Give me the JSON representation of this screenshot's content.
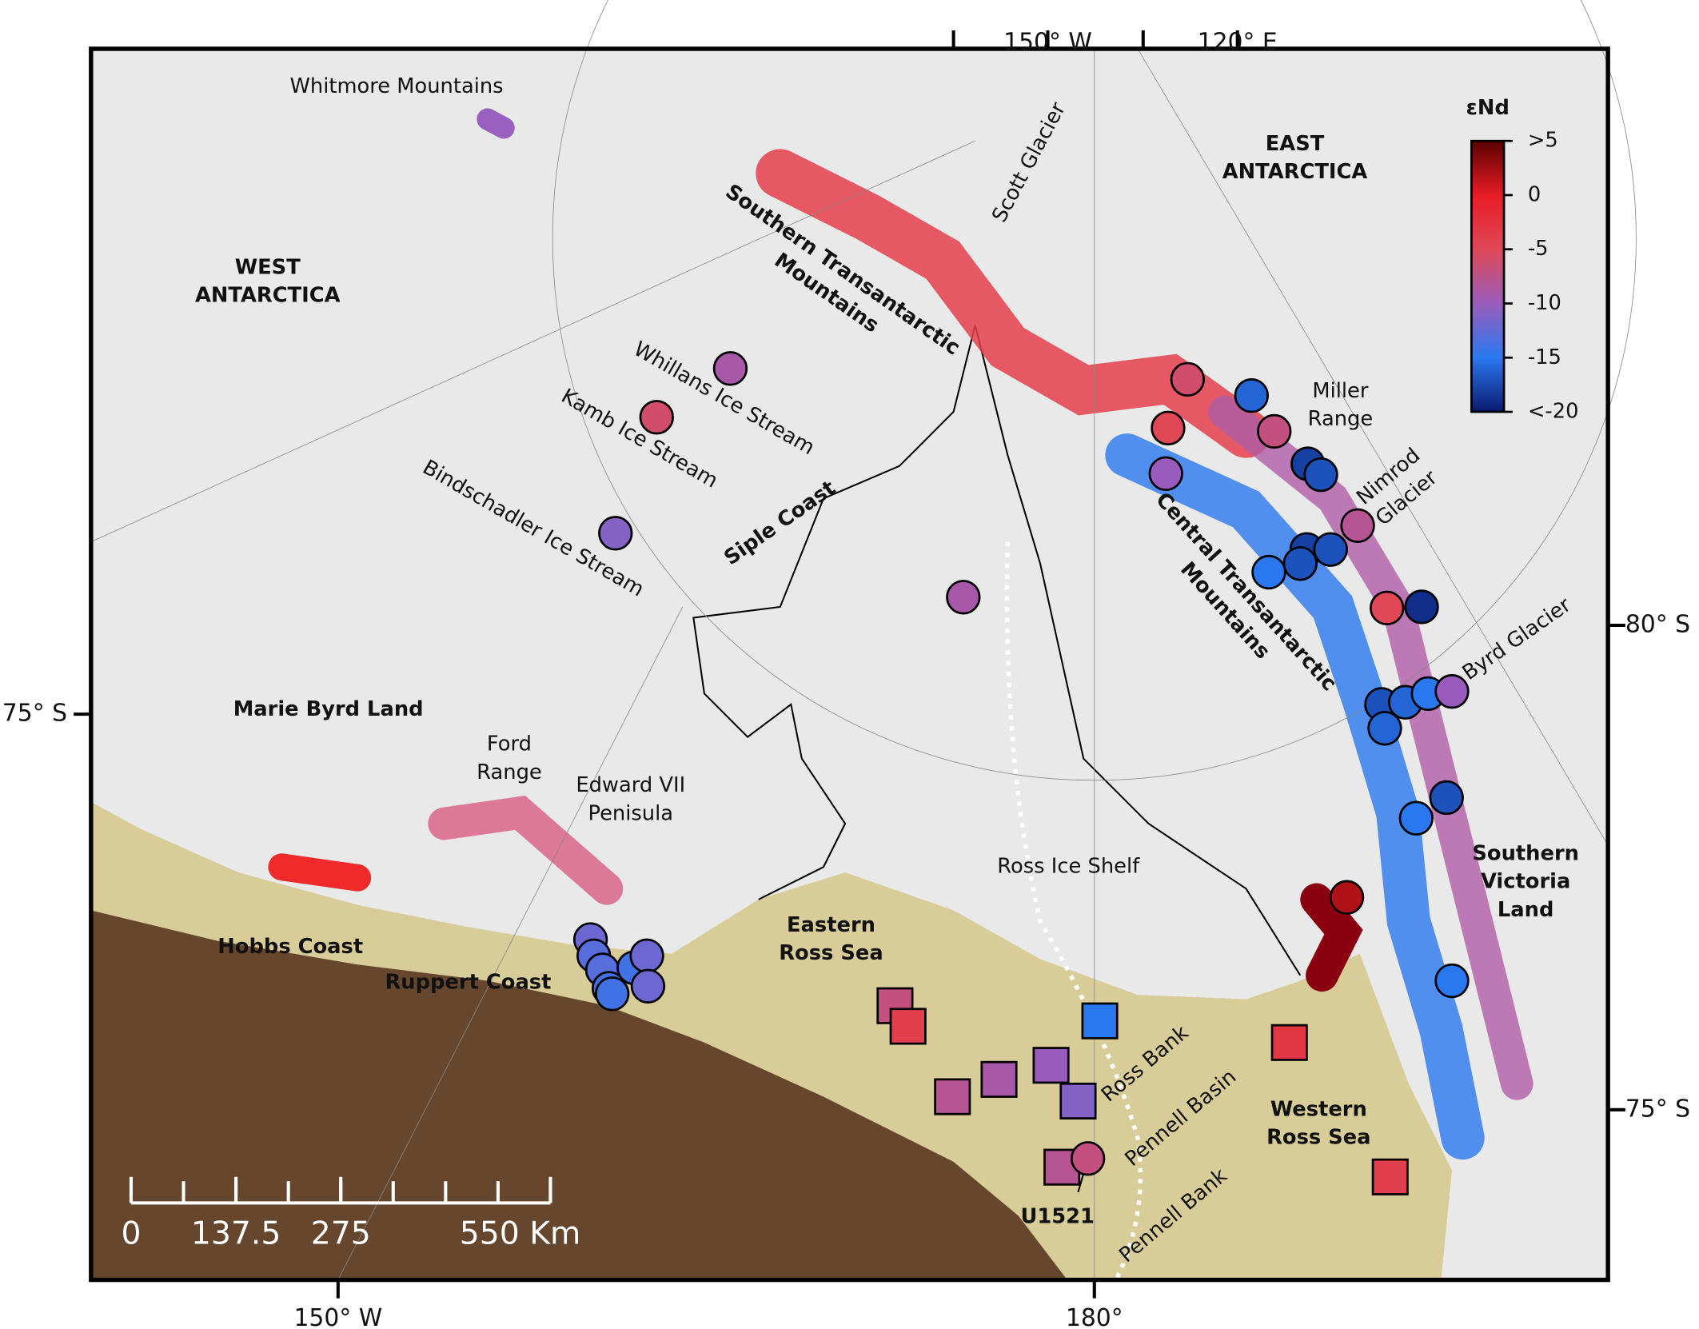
{
  "map": {
    "graticule_labels": [
      "150° W",
      "120° E",
      "80° S",
      "75° S",
      "75° S",
      "150° W",
      "180°"
    ],
    "labels": [
      [
        "Whitmore Mountains"
      ],
      [
        "WEST",
        "ANTARCTICA"
      ],
      [
        "EAST",
        "ANTARCTICA"
      ],
      [
        "Scott Glacier"
      ],
      [
        "Southern Transantarctic",
        "Mountains"
      ],
      [
        "Whillans Ice Stream"
      ],
      [
        "Kamb Ice Stream"
      ],
      [
        "Bindschadler Ice Stream"
      ],
      [
        "Siple Coast"
      ],
      [
        "Miller",
        "Range"
      ],
      [
        "Nimrod",
        "Glacier"
      ],
      [
        "Central Transantarctic",
        "Mountains"
      ],
      [
        "Byrd Glacier"
      ],
      [
        "Marie Byrd Land"
      ],
      [
        "Ford",
        "Range"
      ],
      [
        "Edward VII",
        "Penisula"
      ],
      [
        "Ross Ice Shelf"
      ],
      [
        "Southern",
        "Victoria",
        "Land"
      ],
      [
        "Hobbs Coast"
      ],
      [
        "Ruppert Coast"
      ],
      [
        "Eastern",
        "Ross Sea"
      ],
      [
        "Western",
        "Ross Sea"
      ],
      [
        "Ross Bank"
      ],
      [
        "Pennell Basin"
      ],
      [
        "Pennell Bank"
      ],
      [
        "U1521"
      ]
    ],
    "colorbar": {
      "title": "εNd",
      "lim": [
        -20,
        5
      ],
      "ticks": [
        {
          "value": 5,
          "label": ">5"
        },
        0,
        -5,
        -10,
        -15,
        {
          "value": -20,
          "label": "<-20"
        }
      ]
    },
    "scale_bar": {
      "lim": [
        0,
        550
      ],
      "ticks": [
        0,
        137.5,
        275,
        {
          "value": 550,
          "label": "550 Km"
        }
      ]
    },
    "circles": [
      -9,
      -6,
      -11,
      -9,
      -6,
      -5,
      -10,
      -16,
      -7,
      -18,
      -17,
      -8,
      -18,
      -17,
      -17,
      -15,
      -5,
      -19,
      -17,
      -16,
      -15,
      -10,
      -16,
      -17,
      -15,
      2,
      -15,
      -7,
      -12,
      -13,
      -13,
      -14,
      -14,
      -12,
      -12,
      -14
    ],
    "squares": [
      -7,
      -4,
      -15,
      -8,
      -9,
      -10,
      -11,
      -8,
      -3,
      -4
    ]
  }
}
